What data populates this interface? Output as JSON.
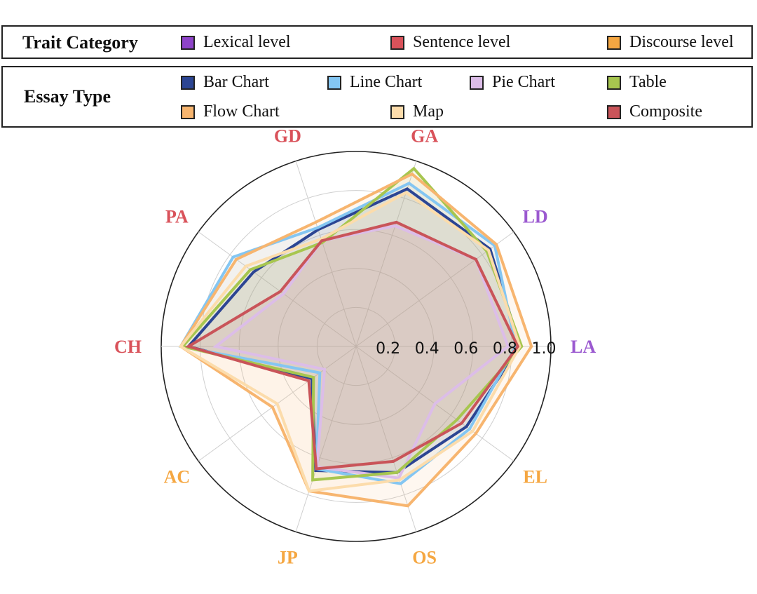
{
  "legend_trait": {
    "title": "Trait Category",
    "items": [
      {
        "label": "Lexical level",
        "color": "#8e44c9"
      },
      {
        "label": "Sentence level",
        "color": "#d9525a"
      },
      {
        "label": "Discourse level",
        "color": "#f5a742"
      }
    ]
  },
  "legend_essay": {
    "title": "Essay Type",
    "items": [
      {
        "label": "Bar Chart",
        "color": "#2c4593"
      },
      {
        "label": "Line Chart",
        "color": "#84c6f2"
      },
      {
        "label": "Pie Chart",
        "color": "#dcbde8"
      },
      {
        "label": "Table",
        "color": "#a7c64f"
      },
      {
        "label": "Flow Chart",
        "color": "#f7b56f"
      },
      {
        "label": "Map",
        "color": "#fcdcab"
      },
      {
        "label": "Composite",
        "color": "#c95459"
      }
    ]
  },
  "chart_data": {
    "type": "radar",
    "categories": [
      "LA",
      "LD",
      "GA",
      "GD",
      "PA",
      "CH",
      "AC",
      "JP",
      "OS",
      "EL"
    ],
    "category_colors": {
      "LA": "#9b59d0",
      "LD": "#9b59d0",
      "GA": "#d9525a",
      "GD": "#d9525a",
      "PA": "#d9525a",
      "CH": "#d9525a",
      "AC": "#f5a742",
      "JP": "#f5a742",
      "OS": "#f5a742",
      "EL": "#f5a742"
    },
    "radial_ticks": [
      "0.2",
      "0.4",
      "0.6",
      "0.8",
      "1.0"
    ],
    "rlim": [
      0,
      1.0
    ],
    "series": [
      {
        "name": "Bar Chart",
        "color": "#2c4593",
        "values": [
          0.84,
          0.85,
          0.85,
          0.63,
          0.65,
          0.86,
          0.28,
          0.67,
          0.68,
          0.7
        ]
      },
      {
        "name": "Line Chart",
        "color": "#84c6f2",
        "values": [
          0.82,
          0.88,
          0.88,
          0.64,
          0.78,
          0.9,
          0.23,
          0.66,
          0.74,
          0.72
        ]
      },
      {
        "name": "Pie Chart",
        "color": "#dcbde8",
        "values": [
          0.78,
          0.76,
          0.65,
          0.57,
          0.46,
          0.72,
          0.2,
          0.65,
          0.71,
          0.5
        ]
      },
      {
        "name": "Table",
        "color": "#a7c64f",
        "values": [
          0.85,
          0.83,
          0.96,
          0.56,
          0.67,
          0.89,
          0.27,
          0.72,
          0.68,
          0.64
        ]
      },
      {
        "name": "Flow Chart",
        "color": "#f7b56f",
        "values": [
          0.9,
          0.89,
          0.93,
          0.67,
          0.76,
          0.9,
          0.53,
          0.78,
          0.86,
          0.76
        ]
      },
      {
        "name": "Map",
        "color": "#fcdcab",
        "values": [
          0.84,
          0.84,
          0.83,
          0.58,
          0.7,
          0.9,
          0.5,
          0.78,
          0.72,
          0.74
        ]
      },
      {
        "name": "Composite",
        "color": "#c95459",
        "values": [
          0.83,
          0.76,
          0.67,
          0.57,
          0.48,
          0.86,
          0.3,
          0.66,
          0.62,
          0.67
        ]
      }
    ]
  }
}
